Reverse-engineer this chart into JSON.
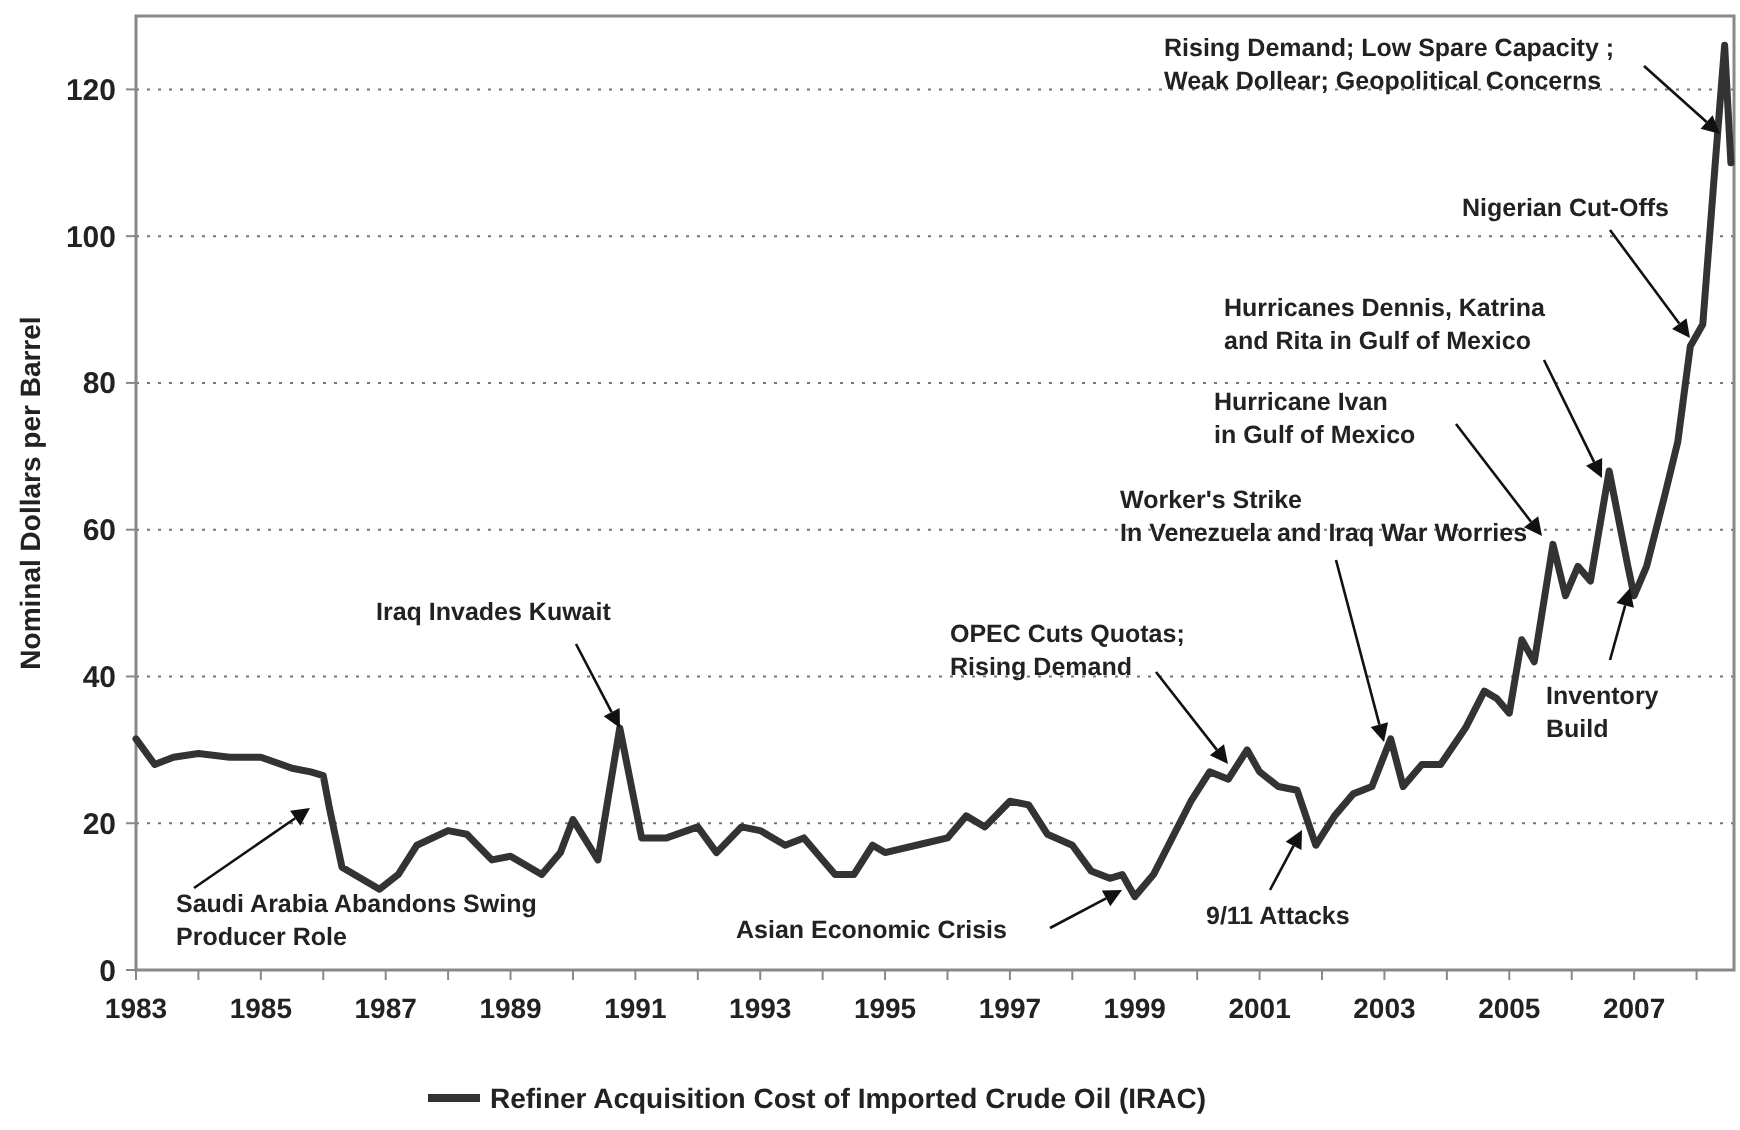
{
  "chart_data": {
    "type": "line",
    "ylabel": "Nominal Dollars per Barrel",
    "xlim": [
      1983,
      2008.6
    ],
    "ylim": [
      0,
      130
    ],
    "xticks": [
      1983,
      {
        "value": 1984,
        "label": null
      },
      1985,
      {
        "value": 1986,
        "label": null
      },
      1987,
      {
        "value": 1988,
        "label": null
      },
      1989,
      {
        "value": 1990,
        "label": null
      },
      1991,
      {
        "value": 1992,
        "label": null
      },
      1993,
      {
        "value": 1994,
        "label": null
      },
      1995,
      {
        "value": 1996,
        "label": null
      },
      1997,
      {
        "value": 1998,
        "label": null
      },
      1999,
      {
        "value": 2000,
        "label": null
      },
      2001,
      {
        "value": 2002,
        "label": null
      },
      2003,
      {
        "value": 2004,
        "label": null
      },
      2005,
      {
        "value": 2006,
        "label": null
      },
      2007,
      {
        "value": 2008,
        "label": null
      }
    ],
    "yticks": [
      0,
      20,
      40,
      60,
      80,
      100,
      120
    ],
    "grid": "y",
    "legend": "bottom",
    "line_style": "solid",
    "marker": "none",
    "x": [
      1983.0,
      1983.3,
      1983.6,
      1984.0,
      1984.5,
      1985.0,
      1985.5,
      1985.8,
      1986.0,
      1986.1,
      1986.3,
      1986.6,
      1986.9,
      1987.2,
      1987.5,
      1988.0,
      1988.3,
      1988.7,
      1989.0,
      1989.5,
      1989.8,
      1990.0,
      1990.4,
      1990.75,
      1991.1,
      1991.5,
      1992.0,
      1992.3,
      1992.7,
      1993.0,
      1993.4,
      1993.7,
      1994.0,
      1994.2,
      1994.5,
      1994.8,
      1995.0,
      1995.5,
      1996.0,
      1996.3,
      1996.6,
      1997.0,
      1997.3,
      1997.6,
      1998.0,
      1998.3,
      1998.6,
      1998.8,
      1999.0,
      1999.3,
      1999.6,
      1999.9,
      2000.2,
      2000.5,
      2000.8,
      2001.0,
      2001.3,
      2001.6,
      2001.9,
      2002.2,
      2002.5,
      2002.8,
      2003.1,
      2003.3,
      2003.6,
      2003.9,
      2004.3,
      2004.6,
      2004.8,
      2005.0,
      2005.2,
      2005.4,
      2005.7,
      2005.9,
      2006.1,
      2006.3,
      2006.6,
      2006.9,
      2007.0,
      2007.2,
      2007.5,
      2007.7,
      2007.9,
      2008.1,
      2008.3,
      2008.45,
      2008.55
    ],
    "series": [
      {
        "name": "Refiner Acquisition Cost of Imported Crude Oil (IRAC)",
        "color": "#333333",
        "values": [
          31.5,
          28,
          29,
          29.5,
          29,
          29,
          27.5,
          27,
          26.5,
          22,
          14,
          12.5,
          11,
          13,
          17,
          19,
          18.5,
          15,
          15.5,
          13,
          16,
          20.5,
          15,
          33,
          18,
          18,
          19.5,
          16,
          19.5,
          19,
          17,
          18,
          15,
          13,
          13,
          17,
          16,
          17,
          18,
          21,
          19.5,
          23,
          22.5,
          18.5,
          17,
          13.5,
          12.5,
          13,
          10,
          13,
          18,
          23,
          27,
          26,
          30,
          27,
          25,
          24.5,
          17,
          21,
          24,
          25,
          31.5,
          25,
          28,
          28,
          33,
          38,
          37,
          35,
          45,
          42,
          58,
          51,
          55,
          53,
          68,
          55,
          51,
          55,
          65,
          72,
          85,
          88,
          110,
          126,
          110
        ]
      }
    ],
    "annotations": [
      "Saudi Arabia Abandons Swing\nProducer Role",
      "Iraq Invades Kuwait",
      "Asian Economic Crisis",
      "OPEC Cuts Quotas;\nRising Demand",
      "9/11 Attacks",
      "Worker's Strike\nIn Venezuela and Iraq War Worries",
      "Hurricane Ivan\nin Gulf of Mexico",
      "Hurricanes Dennis, Katrina\nand Rita in Gulf of Mexico",
      "Inventory\nBuild",
      "Nigerian Cut-Offs",
      "Rising Demand; Low Spare Capacity ;\nWeak Dollear; Geopolitical Concerns"
    ]
  }
}
